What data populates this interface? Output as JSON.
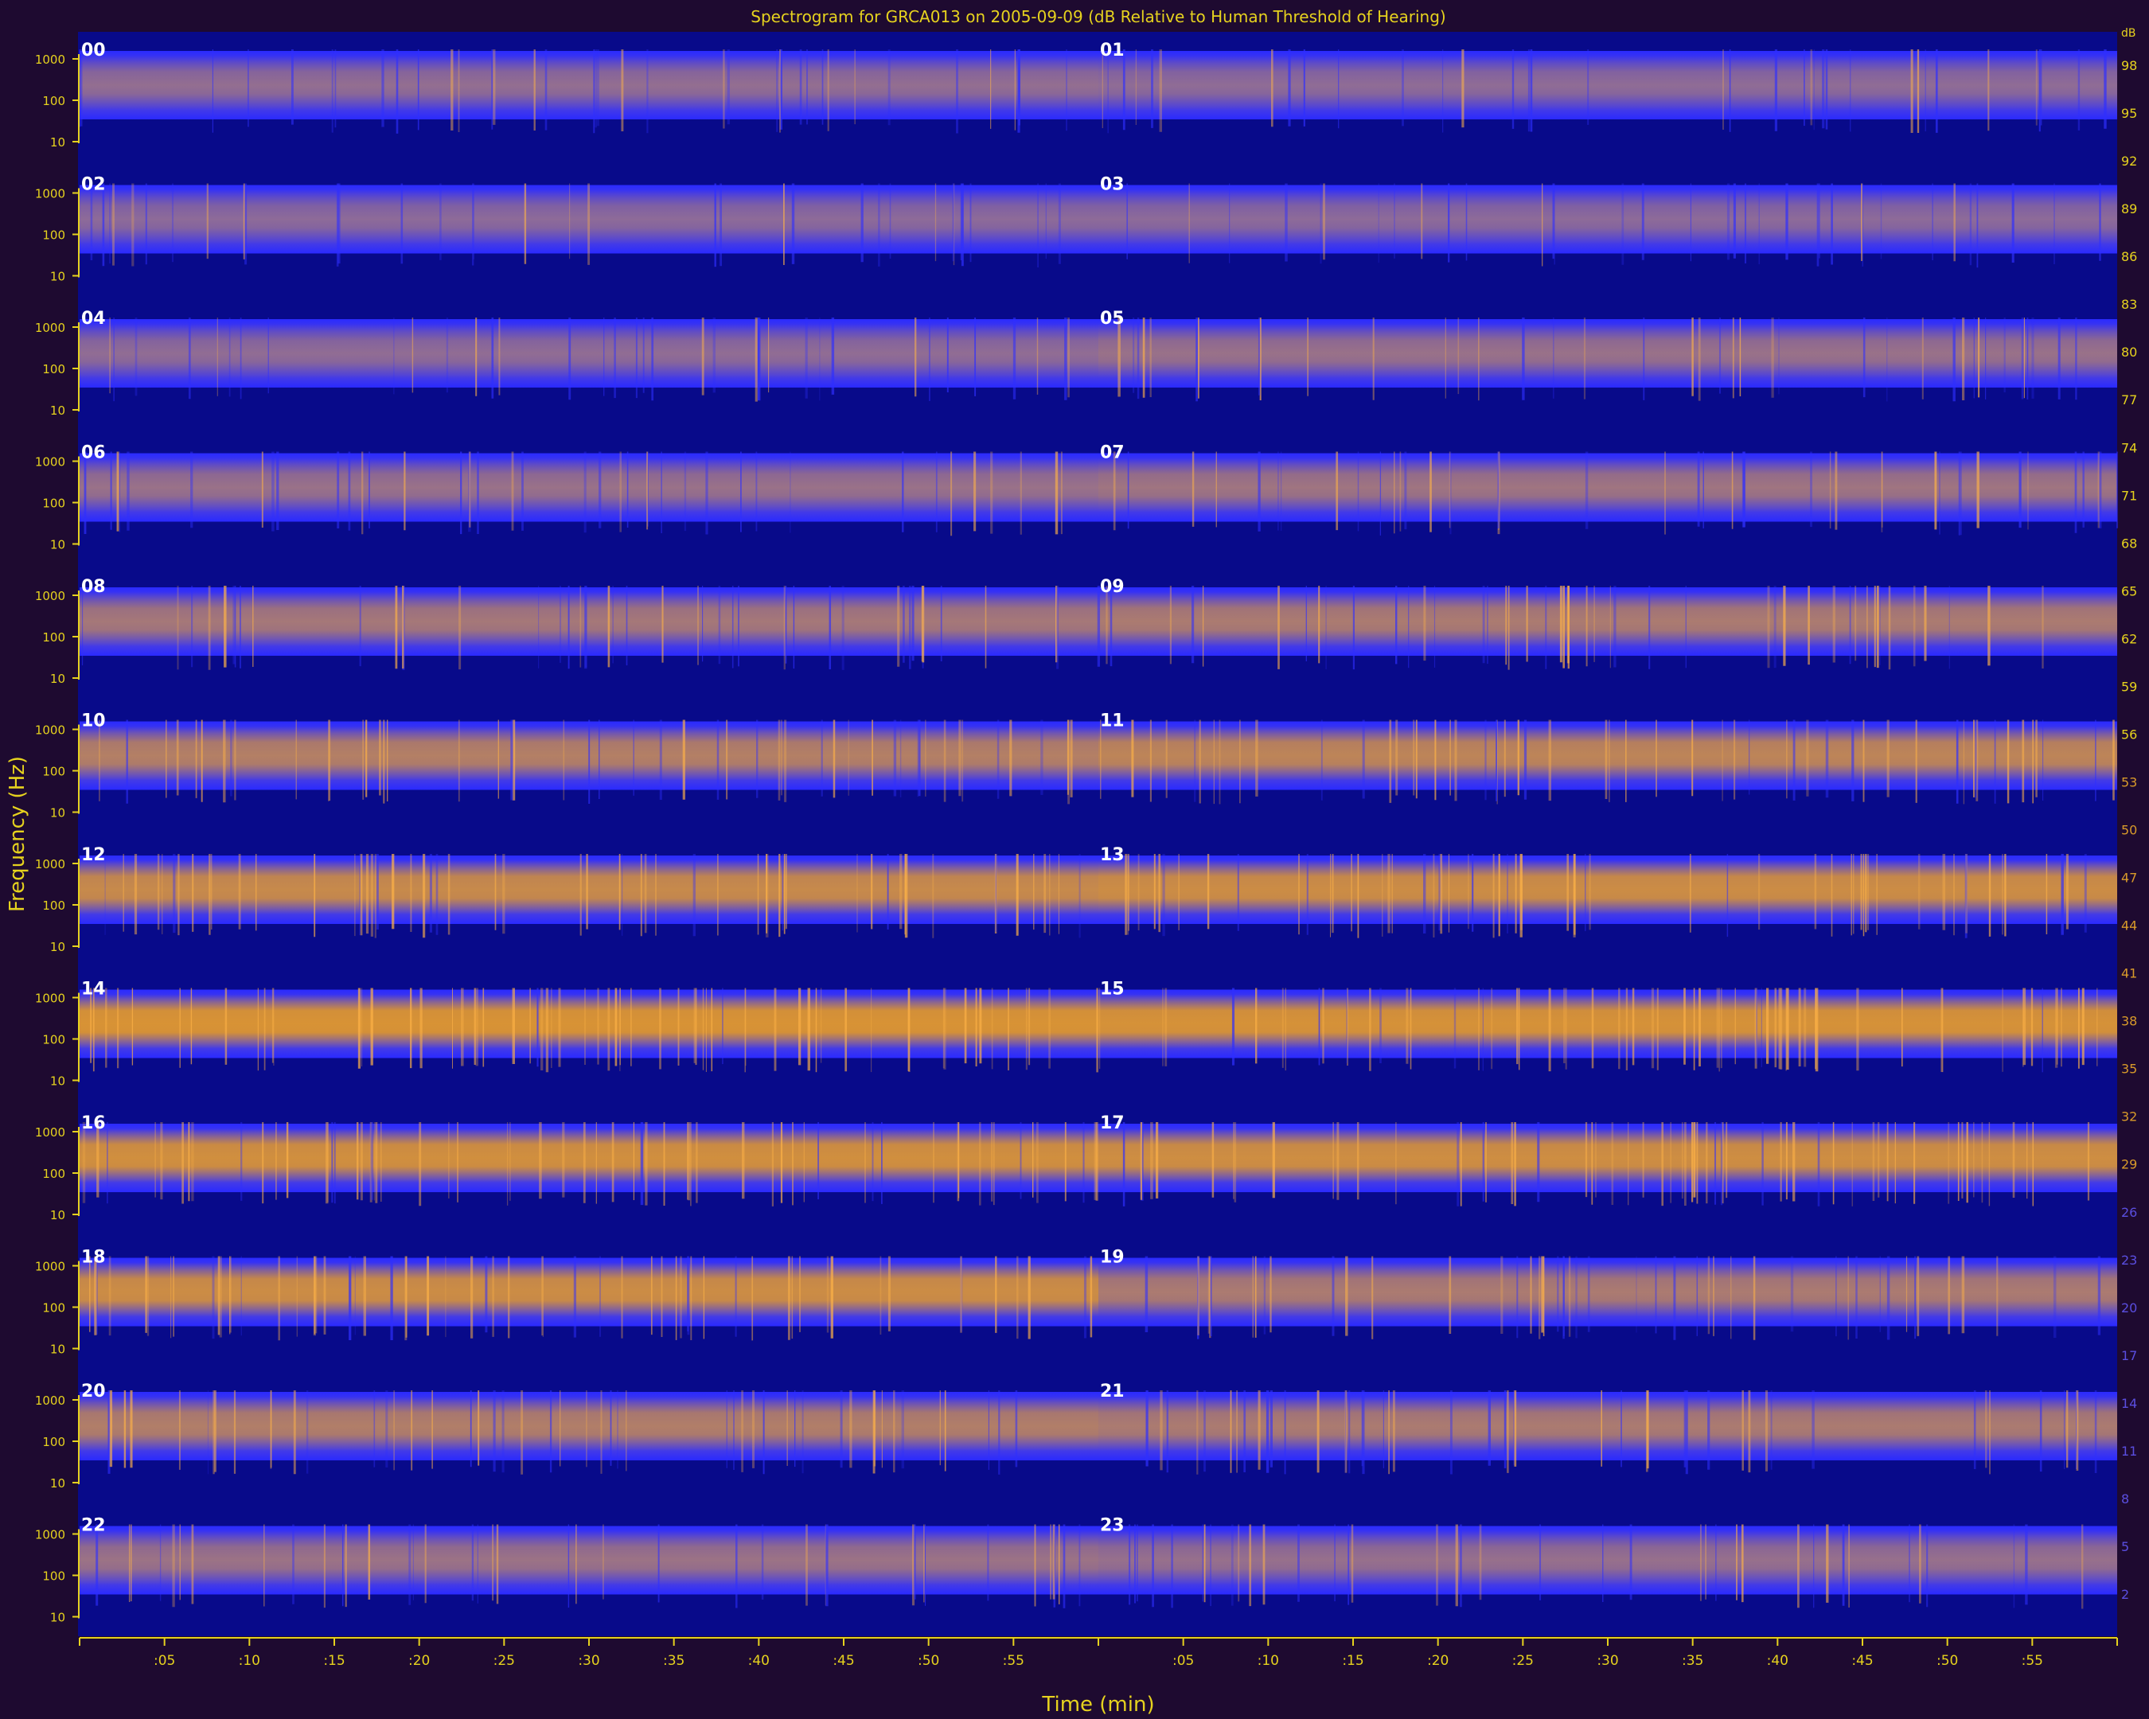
{
  "chart_data": {
    "type": "heatmap",
    "title": "Spectrogram for GRCA013 on 2005-09-09 (dB Relative to Human Threshold of Hearing)",
    "xlabel": "Time (min)",
    "ylabel": "Frequency (Hz)",
    "x_tick_labels": [
      ":05",
      ":10",
      ":15",
      ":20",
      ":25",
      ":30",
      ":35",
      ":40",
      ":45",
      ":50",
      ":55"
    ],
    "y_tick_labels": [
      "1000",
      "100",
      "10"
    ],
    "colorbar": {
      "ticks": [
        98,
        95,
        92,
        89,
        86,
        83,
        80,
        77,
        74,
        71,
        68,
        65,
        62,
        59,
        56,
        53,
        50,
        47,
        44,
        41,
        38,
        35,
        32,
        29,
        26,
        23,
        20,
        17,
        14,
        11,
        8,
        5,
        2
      ],
      "unit": "dB",
      "colors": [
        "#2a2aff",
        "#6a58c8",
        "#ffa800"
      ]
    },
    "rows": [
      {
        "left_hour": "00",
        "right_hour": "01",
        "intensity": [
          0.35,
          0.32
        ]
      },
      {
        "left_hour": "02",
        "right_hour": "03",
        "intensity": [
          0.3,
          0.3
        ]
      },
      {
        "left_hour": "04",
        "right_hour": "05",
        "intensity": [
          0.33,
          0.4
        ]
      },
      {
        "left_hour": "06",
        "right_hour": "07",
        "intensity": [
          0.4,
          0.45
        ]
      },
      {
        "left_hour": "08",
        "right_hour": "09",
        "intensity": [
          0.5,
          0.55
        ]
      },
      {
        "left_hour": "10",
        "right_hour": "11",
        "intensity": [
          0.62,
          0.7
        ]
      },
      {
        "left_hour": "12",
        "right_hour": "13",
        "intensity": [
          0.78,
          0.82
        ]
      },
      {
        "left_hour": "14",
        "right_hour": "15",
        "intensity": [
          0.92,
          0.9
        ]
      },
      {
        "left_hour": "16",
        "right_hour": "17",
        "intensity": [
          0.86,
          0.84
        ]
      },
      {
        "left_hour": "18",
        "right_hour": "19",
        "intensity": [
          0.82,
          0.55
        ]
      },
      {
        "left_hour": "20",
        "right_hour": "21",
        "intensity": [
          0.6,
          0.55
        ]
      },
      {
        "left_hour": "22",
        "right_hour": "23",
        "intensity": [
          0.42,
          0.38
        ]
      }
    ]
  }
}
